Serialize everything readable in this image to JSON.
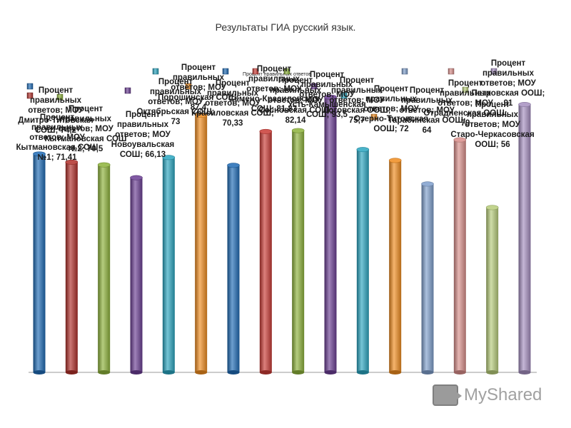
{
  "chart_data": {
    "type": "bar",
    "title": "Результаты ГИА русский язык.",
    "inner_title": "Процент правильных ответов",
    "legend_placement": "top",
    "grid": false,
    "ylim": [
      0,
      95
    ],
    "series": [
      {
        "name": "Процент правильных ответов; МОУ Дмитро-Титовская СОШ; 74,2",
        "label": "Процент правильных ответов; МОУ Дмитро-Титовская СОШ; 74,2",
        "value": 74.2,
        "color": "#1f6bb5"
      },
      {
        "name": "Процент правильных ответов; МОУ Кытмановская СОШ №1; 71,41",
        "label": "Процент правильных ответов; МОУ Кытмановская СОШ №1; 71,41",
        "value": 71.41,
        "color": "#b0302a"
      },
      {
        "name": "Процент правильных ответов; МОУ Кытмановская СОШ №2; 70,5",
        "label": "Процент правильных ответов; МОУ Кытмановская СОШ №2; 70,5",
        "value": 70.5,
        "color": "#8db23a"
      },
      {
        "name": "Процент правильных ответов; МОУ Новоувальская СОШ; 66,13",
        "label": "Процент правильных ответов; МОУ Новоувальская СОШ; 66,13",
        "value": 66.13,
        "color": "#6b3e94"
      },
      {
        "name": "Процент правильных ответов; МОУ Октябрьская СОШ; 73",
        "label": "Процент правильных ответов; МОУ Октябрьская СОШ; 73",
        "value": 73,
        "color": "#2aa5c0"
      },
      {
        "name": "Процент правильных ответов; МОУ Порошинская СОШ; 87,4",
        "label": "Процент правильных ответов; МОУ Порошинская СОШ; 87,4",
        "value": 87.4,
        "color": "#f08c1e"
      },
      {
        "name": "Процент правильных ответов; МОУ Красиловская СОШ; 70,33",
        "label": "Процент правильных ответов; МОУ Красиловская СОШ; 70,33",
        "value": 70.33,
        "color": "#1f6bb5"
      },
      {
        "name": "Процент правильных ответов; МОУ Семено-Красиловская СОШ; 81,83",
        "label": "Процент правильных ответов; МОУ Семено-Красиловская СОШ; 81,83",
        "value": 81.83,
        "color": "#c93b35"
      },
      {
        "name": "Процент правильных ответов; МОУ Сосновская СОШ; 82,14",
        "label": "Процент правильных ответов; МОУ Сосновская СОШ; 82,14",
        "value": 82.14,
        "color": "#8db23a"
      },
      {
        "name": "Процент правильных ответов; МОУ Усть-Камышенская СОШ; 93,5",
        "label": "Процент правильных ответов; МОУ Усть-Камышенская СОШ; 93,5",
        "value": 93.5,
        "color": "#6b3e94"
      },
      {
        "name": "Процент правильных ответов; МОУ Логовская ООШ; 75,7",
        "label": "Процент правильных ответов; МОУ Логовская ООШ; 75,7",
        "value": 75.7,
        "color": "#2aa5c0"
      },
      {
        "name": "Процент правильных ответов; МОУ Озерно-Титовская ООШ; 72",
        "label": "Процент правильных ответов; МОУ Озерно-Титовская ООШ; 72",
        "value": 72,
        "color": "#f08c1e"
      },
      {
        "name": "Процент правильных ответов; МОУ Тарабинская ООШ; 64",
        "label": "Процент правильных ответов; МОУ Тарабинская ООШ; 64",
        "value": 64,
        "color": "#7f9fcc"
      },
      {
        "name": "Процент правильных ответов; МОУ Отрадненская ООШ; 79",
        "label": "Процент правильных ответов; МОУ Отрадненская ООШ; 79",
        "value": 79,
        "color": "#d98e8a"
      },
      {
        "name": "Процент правильных ответов; МОУ Старо-Черкасовская ООШ; 56",
        "label": "Процент правильных ответов; МОУ Старо-Черкасовская ООШ; 56",
        "value": 56,
        "color": "#b7cc7a"
      },
      {
        "name": "Процент правильных ответов; МОУ Петровская ООШ; 91",
        "label": "Процент правильных ответов; МОУ Петровская ООШ; 91",
        "value": 91,
        "color": "#a58fc0"
      }
    ]
  },
  "watermark": {
    "text": "MyShared"
  }
}
